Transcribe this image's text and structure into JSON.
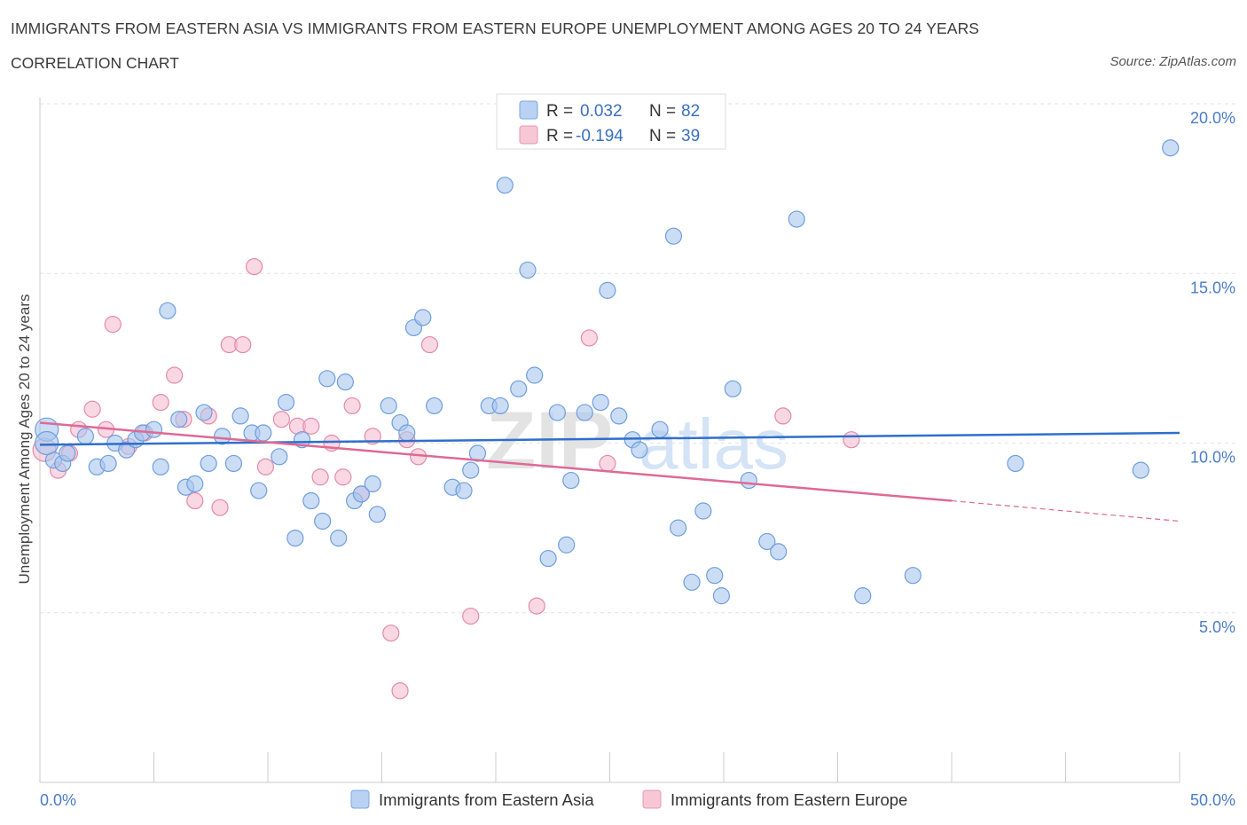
{
  "header": {
    "title": "IMMIGRANTS FROM EASTERN ASIA VS IMMIGRANTS FROM EASTERN EUROPE UNEMPLOYMENT AMONG AGES 20 TO 24 YEARS",
    "subtitle": "CORRELATION CHART",
    "source": "Source: ZipAtlas.com"
  },
  "legend": {
    "series1": {
      "r_label": "R =",
      "r_value": "0.032",
      "n_label": "N =",
      "n_value": "82"
    },
    "series2": {
      "r_label": "R =",
      "r_value": "-0.194",
      "n_label": "N =",
      "n_value": "39"
    }
  },
  "watermark": {
    "zip": "ZIP",
    "atlas": "atlas"
  },
  "chart_data": {
    "type": "scatter",
    "title": "IMMIGRANTS FROM EASTERN ASIA VS IMMIGRANTS FROM EASTERN EUROPE UNEMPLOYMENT AMONG AGES 20 TO 24 YEARS",
    "xlabel": "",
    "ylabel": "Unemployment Among Ages 20 to 24 years",
    "xlim": [
      0,
      50
    ],
    "ylim": [
      0,
      20
    ],
    "x_tick_labels": [
      "0.0%",
      "50.0%"
    ],
    "y_ticks": [
      5,
      10,
      15,
      20
    ],
    "y_tick_labels": [
      "5.0%",
      "10.0%",
      "15.0%",
      "20.0%"
    ],
    "grid": true,
    "series": [
      {
        "name": "Immigrants from Eastern Asia",
        "color": "#a8c6ef",
        "stroke": "#6f9ede",
        "trend_color": "#2f6fcc",
        "trend": {
          "x1": 0,
          "y1": 9.95,
          "x2": 50,
          "y2": 10.3
        },
        "points": [
          [
            0.3,
            10.4
          ],
          [
            0.6,
            9.5
          ],
          [
            1.0,
            9.4
          ],
          [
            1.2,
            9.7
          ],
          [
            2.0,
            10.2
          ],
          [
            2.5,
            9.3
          ],
          [
            3.0,
            9.4
          ],
          [
            3.3,
            10.0
          ],
          [
            3.8,
            9.8
          ],
          [
            4.2,
            10.1
          ],
          [
            4.5,
            10.3
          ],
          [
            5.0,
            10.4
          ],
          [
            5.3,
            9.3
          ],
          [
            5.6,
            13.9
          ],
          [
            6.1,
            10.7
          ],
          [
            6.4,
            8.7
          ],
          [
            6.8,
            8.8
          ],
          [
            7.2,
            10.9
          ],
          [
            7.4,
            9.4
          ],
          [
            8.0,
            10.2
          ],
          [
            8.5,
            9.4
          ],
          [
            8.8,
            10.8
          ],
          [
            9.3,
            10.3
          ],
          [
            9.6,
            8.6
          ],
          [
            9.8,
            10.3
          ],
          [
            10.5,
            9.6
          ],
          [
            10.8,
            11.2
          ],
          [
            11.2,
            7.2
          ],
          [
            11.5,
            10.1
          ],
          [
            11.9,
            8.3
          ],
          [
            12.4,
            7.7
          ],
          [
            12.6,
            11.9
          ],
          [
            13.1,
            7.2
          ],
          [
            13.4,
            11.8
          ],
          [
            13.8,
            8.3
          ],
          [
            14.1,
            8.5
          ],
          [
            14.6,
            8.8
          ],
          [
            14.8,
            7.9
          ],
          [
            15.3,
            11.1
          ],
          [
            15.8,
            10.6
          ],
          [
            16.1,
            10.3
          ],
          [
            16.4,
            13.4
          ],
          [
            16.8,
            13.7
          ],
          [
            17.3,
            11.1
          ],
          [
            18.1,
            8.7
          ],
          [
            18.6,
            8.6
          ],
          [
            18.9,
            9.2
          ],
          [
            19.2,
            9.7
          ],
          [
            19.7,
            11.1
          ],
          [
            20.2,
            11.1
          ],
          [
            20.4,
            17.6
          ],
          [
            21.0,
            11.6
          ],
          [
            21.4,
            15.1
          ],
          [
            21.7,
            12.0
          ],
          [
            22.3,
            6.6
          ],
          [
            22.7,
            10.9
          ],
          [
            23.1,
            7.0
          ],
          [
            23.3,
            8.9
          ],
          [
            23.9,
            10.9
          ],
          [
            24.6,
            11.2
          ],
          [
            24.9,
            14.5
          ],
          [
            25.4,
            10.8
          ],
          [
            26.0,
            10.1
          ],
          [
            26.3,
            9.8
          ],
          [
            27.2,
            10.4
          ],
          [
            27.8,
            16.1
          ],
          [
            28.0,
            7.5
          ],
          [
            28.6,
            5.9
          ],
          [
            29.1,
            8.0
          ],
          [
            29.6,
            6.1
          ],
          [
            29.9,
            5.5
          ],
          [
            30.4,
            11.6
          ],
          [
            31.1,
            8.9
          ],
          [
            31.9,
            7.1
          ],
          [
            32.4,
            6.8
          ],
          [
            33.2,
            16.6
          ],
          [
            36.1,
            5.5
          ],
          [
            38.3,
            6.1
          ],
          [
            42.8,
            9.4
          ],
          [
            48.3,
            9.2
          ],
          [
            49.6,
            18.7
          ],
          [
            0.3,
            10.0
          ]
        ]
      },
      {
        "name": "Immigrants from Eastern Europe",
        "color": "#f5bdd0",
        "stroke": "#e58aa8",
        "trend_color": "#de6a94",
        "trend": {
          "x1": 0,
          "y1": 10.6,
          "x2": 40,
          "y2": 8.3
        },
        "trend_dashed": {
          "x1": 40,
          "y1": 8.3,
          "x2": 50,
          "y2": 7.7
        },
        "points": [
          [
            0.2,
            9.8
          ],
          [
            0.8,
            9.2
          ],
          [
            1.3,
            9.7
          ],
          [
            1.7,
            10.4
          ],
          [
            2.3,
            11.0
          ],
          [
            2.9,
            10.4
          ],
          [
            3.2,
            13.5
          ],
          [
            3.9,
            9.9
          ],
          [
            4.6,
            10.3
          ],
          [
            5.3,
            11.2
          ],
          [
            5.9,
            12.0
          ],
          [
            6.3,
            10.7
          ],
          [
            6.8,
            8.3
          ],
          [
            7.4,
            10.8
          ],
          [
            7.9,
            8.1
          ],
          [
            8.3,
            12.9
          ],
          [
            8.9,
            12.9
          ],
          [
            9.4,
            15.2
          ],
          [
            9.9,
            9.3
          ],
          [
            10.6,
            10.7
          ],
          [
            11.3,
            10.5
          ],
          [
            11.9,
            10.5
          ],
          [
            12.3,
            9.0
          ],
          [
            12.8,
            10.0
          ],
          [
            13.3,
            9.0
          ],
          [
            13.7,
            11.1
          ],
          [
            14.1,
            8.5
          ],
          [
            14.6,
            10.2
          ],
          [
            15.4,
            4.4
          ],
          [
            15.8,
            2.7
          ],
          [
            16.1,
            10.1
          ],
          [
            16.6,
            9.6
          ],
          [
            17.1,
            12.9
          ],
          [
            18.9,
            4.9
          ],
          [
            21.8,
            5.2
          ],
          [
            24.1,
            13.1
          ],
          [
            24.9,
            9.4
          ],
          [
            32.6,
            10.8
          ],
          [
            35.6,
            10.1
          ]
        ]
      }
    ]
  },
  "bottom_legend": {
    "series1_label": "Immigrants from Eastern Asia",
    "series2_label": "Immigrants from Eastern Europe"
  },
  "axis": {
    "x_left_label": "0.0%",
    "x_right_label": "50.0%",
    "y_title": "Unemployment Among Ages 20 to 24 years"
  }
}
